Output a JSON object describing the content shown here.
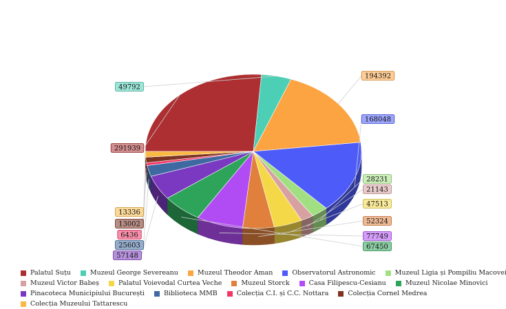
{
  "chart_data": {
    "type": "pie",
    "style": "3d",
    "labels": [
      "Palatul Suțu",
      "Muzeul George Severeanu",
      "Muzeul Theodor Aman",
      "Observatorul Astronomic",
      "Muzeul Ligia și Pompiliu Macovei",
      "Muzeul Victor Babeș",
      "Palatul Voievodal Curtea Veche",
      "Muzeul Storck",
      "Casa Filipescu-Cesianu",
      "Muzeul Nicolae Minovici",
      "Pinacoteca Municipiului București",
      "Biblioteca MMB",
      "Colecția C.I. și C.C. Nottara",
      "Colecția Cornel Medrea",
      "Colecția Muzeului Tattarescu"
    ],
    "values": [
      291939,
      49792,
      194392,
      168048,
      28231,
      21143,
      47513,
      52324,
      77749,
      67450,
      57148,
      25603,
      6436,
      13002,
      13336
    ],
    "value_labels": [
      "291939",
      "49792",
      "194392",
      "168048",
      "28231",
      "21143",
      "47513",
      "52324",
      "77749",
      "67450",
      "57148",
      "25603",
      "6436",
      "13002",
      "13336"
    ],
    "colors": [
      "#ad2f32",
      "#4dcfb6",
      "#fda442",
      "#4d5cf9",
      "#a1e082",
      "#d8a1a1",
      "#f4d848",
      "#e0803c",
      "#b14cf4",
      "#2ea45a",
      "#7a39c0",
      "#3e6aa1",
      "#f43566",
      "#7e3322",
      "#f8b945"
    ],
    "legend_position": "bottom"
  }
}
